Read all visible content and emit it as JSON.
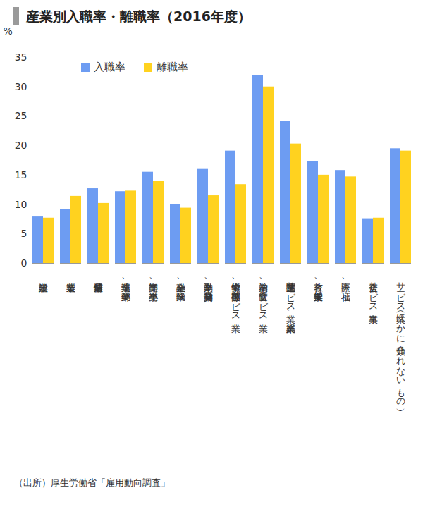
{
  "chart_data": {
    "type": "bar",
    "title": "産業別入職率・離職率（2016年度）",
    "y_label": "%",
    "source": "（出所）厚生労働省「雇用動向調査」",
    "categories": [
      "建設業",
      "製造業",
      "情報通信業",
      "運輸業、郵便業",
      "卸売業、小売業",
      "金融業、保険業",
      "不動産業、物品賃貸業",
      "学術研究、専門・技術サービス業",
      "宿泊業、飲食サービス業",
      "生活関連サービス業、娯楽業",
      "教育、学習支援業",
      "医療、福祉",
      "複合サービス事業",
      "サービス業（ほかに分類されないもの）"
    ],
    "series": [
      {
        "name": "入職率",
        "color": "#6d9cf2",
        "values": [
          7.9,
          9.2,
          12.7,
          12.2,
          15.5,
          10.0,
          16.1,
          19.1,
          32.0,
          24.1,
          17.3,
          15.8,
          7.6,
          19.5
        ]
      },
      {
        "name": "離職率",
        "color": "#ffd21f",
        "values": [
          7.7,
          11.4,
          10.2,
          12.3,
          14.0,
          9.4,
          11.5,
          13.4,
          30.0,
          20.3,
          15.0,
          14.7,
          7.7,
          19.1
        ]
      }
    ],
    "ylim": [
      0,
      35
    ],
    "yticks": [
      0,
      5,
      10,
      15,
      20,
      25,
      30,
      35
    ],
    "grid": false,
    "legend": "top-left"
  }
}
